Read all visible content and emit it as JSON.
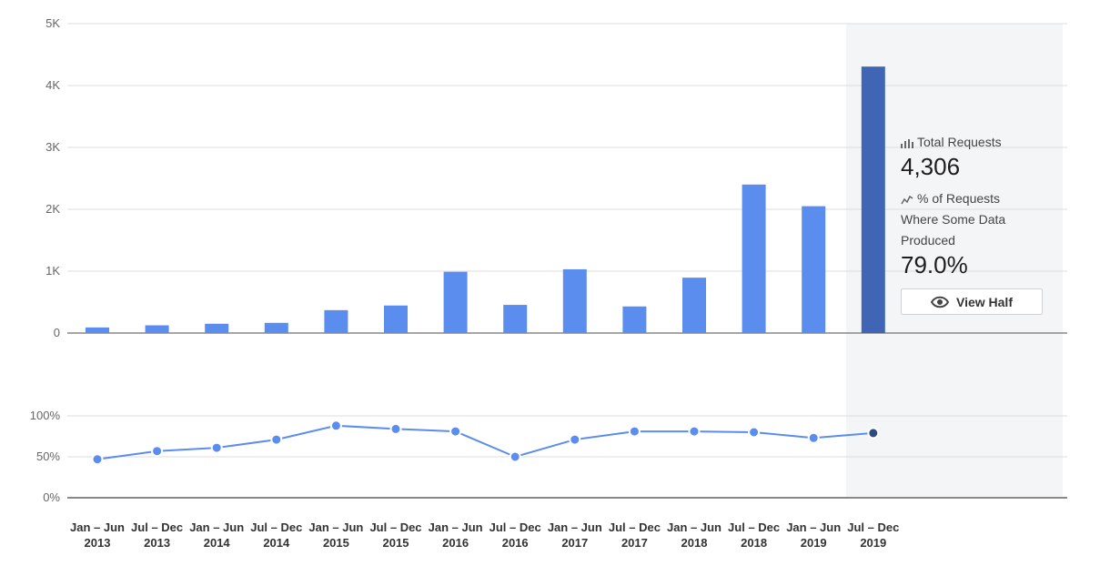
{
  "chart_data": [
    {
      "type": "bar",
      "title": "",
      "xlabel": "",
      "ylabel": "",
      "ylim": [
        0,
        5000
      ],
      "yticks": [
        "0",
        "1K",
        "2K",
        "3K",
        "4K",
        "5K"
      ],
      "categories": [
        [
          "Jan – Jun",
          "2013"
        ],
        [
          "Jul – Dec",
          "2013"
        ],
        [
          "Jan – Jun",
          "2014"
        ],
        [
          "Jul – Dec",
          "2014"
        ],
        [
          "Jan – Jun",
          "2015"
        ],
        [
          "Jul – Dec",
          "2015"
        ],
        [
          "Jan – Jun",
          "2016"
        ],
        [
          "Jul – Dec",
          "2016"
        ],
        [
          "Jan – Jun",
          "2017"
        ],
        [
          "Jul – Dec",
          "2017"
        ],
        [
          "Jan – Jun",
          "2018"
        ],
        [
          "Jul – Dec",
          "2018"
        ],
        [
          "Jan – Jun",
          "2019"
        ],
        [
          "Jul – Dec",
          "2019"
        ]
      ],
      "values": [
        90,
        125,
        150,
        165,
        370,
        445,
        990,
        455,
        1030,
        430,
        895,
        2400,
        2050,
        4306
      ],
      "highlight_index": 13,
      "grid": true
    },
    {
      "type": "line",
      "title": "",
      "ylim": [
        0,
        100
      ],
      "yticks": [
        "0%",
        "50%",
        "100%"
      ],
      "values": [
        47,
        57,
        61,
        71,
        88,
        84,
        81,
        50,
        71,
        81,
        81,
        80,
        73,
        79
      ],
      "highlight_index": 13,
      "grid": true
    }
  ],
  "colors": {
    "bar": "#5b8def",
    "bar_highlight": "#4065b4",
    "line": "#5b8def",
    "point_highlight": "#2f4a80",
    "grid": "#dddddd",
    "axis": "#888888",
    "panel": "#f4f5f7"
  },
  "tooltip": {
    "total_label": "Total Requests",
    "total_value": "4,306",
    "total_icon": "bar-chart-icon",
    "pct_label_line1": "% of Requests",
    "pct_label_line2": "Where Some Data",
    "pct_label_line3": "Produced",
    "pct_value": "79.0%",
    "pct_icon": "line-trend-icon",
    "button_label": "View Half",
    "button_icon": "eye-icon"
  }
}
